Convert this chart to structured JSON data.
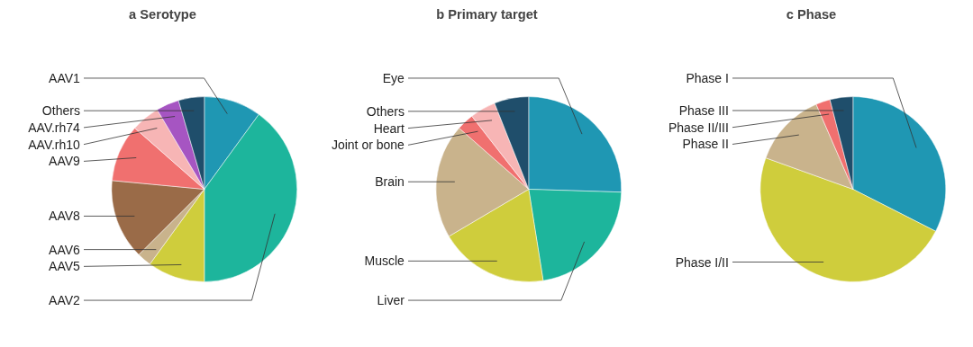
{
  "chart_data": [
    {
      "type": "pie",
      "title": "a Serotype",
      "categories": [
        "AAV1",
        "AAV2",
        "AAV5",
        "AAV6",
        "AAV8",
        "AAV9",
        "AAV.rh10",
        "AAV.rh74",
        "Others"
      ],
      "values": [
        10,
        40,
        10,
        2.5,
        14,
        10,
        5,
        4,
        4.5
      ],
      "colors": [
        "#1f97b3",
        "#1db59c",
        "#cfcd3c",
        "#c9b38c",
        "#9a6b48",
        "#f0706f",
        "#f7b5b5",
        "#a655c2",
        "#1f4e6b"
      ]
    },
    {
      "type": "pie",
      "title": "b Primary target",
      "categories": [
        "Eye",
        "Liver",
        "Muscle",
        "Brain",
        "Joint or bone",
        "Heart",
        "Others"
      ],
      "values": [
        25.5,
        22,
        19,
        20,
        3,
        4.5,
        6
      ],
      "colors": [
        "#1f97b3",
        "#1db59c",
        "#cfcd3c",
        "#c9b38c",
        "#f0706f",
        "#f7b5b5",
        "#1f4e6b"
      ]
    },
    {
      "type": "pie",
      "title": "c Phase",
      "categories": [
        "Phase I",
        "Phase I/II",
        "Phase II",
        "Phase II/III",
        "Phase III"
      ],
      "values": [
        32.5,
        48,
        13,
        2.5,
        4
      ],
      "colors": [
        "#1f97b3",
        "#cfcd3c",
        "#c9b38c",
        "#f0706f",
        "#1f4e6b"
      ]
    }
  ]
}
